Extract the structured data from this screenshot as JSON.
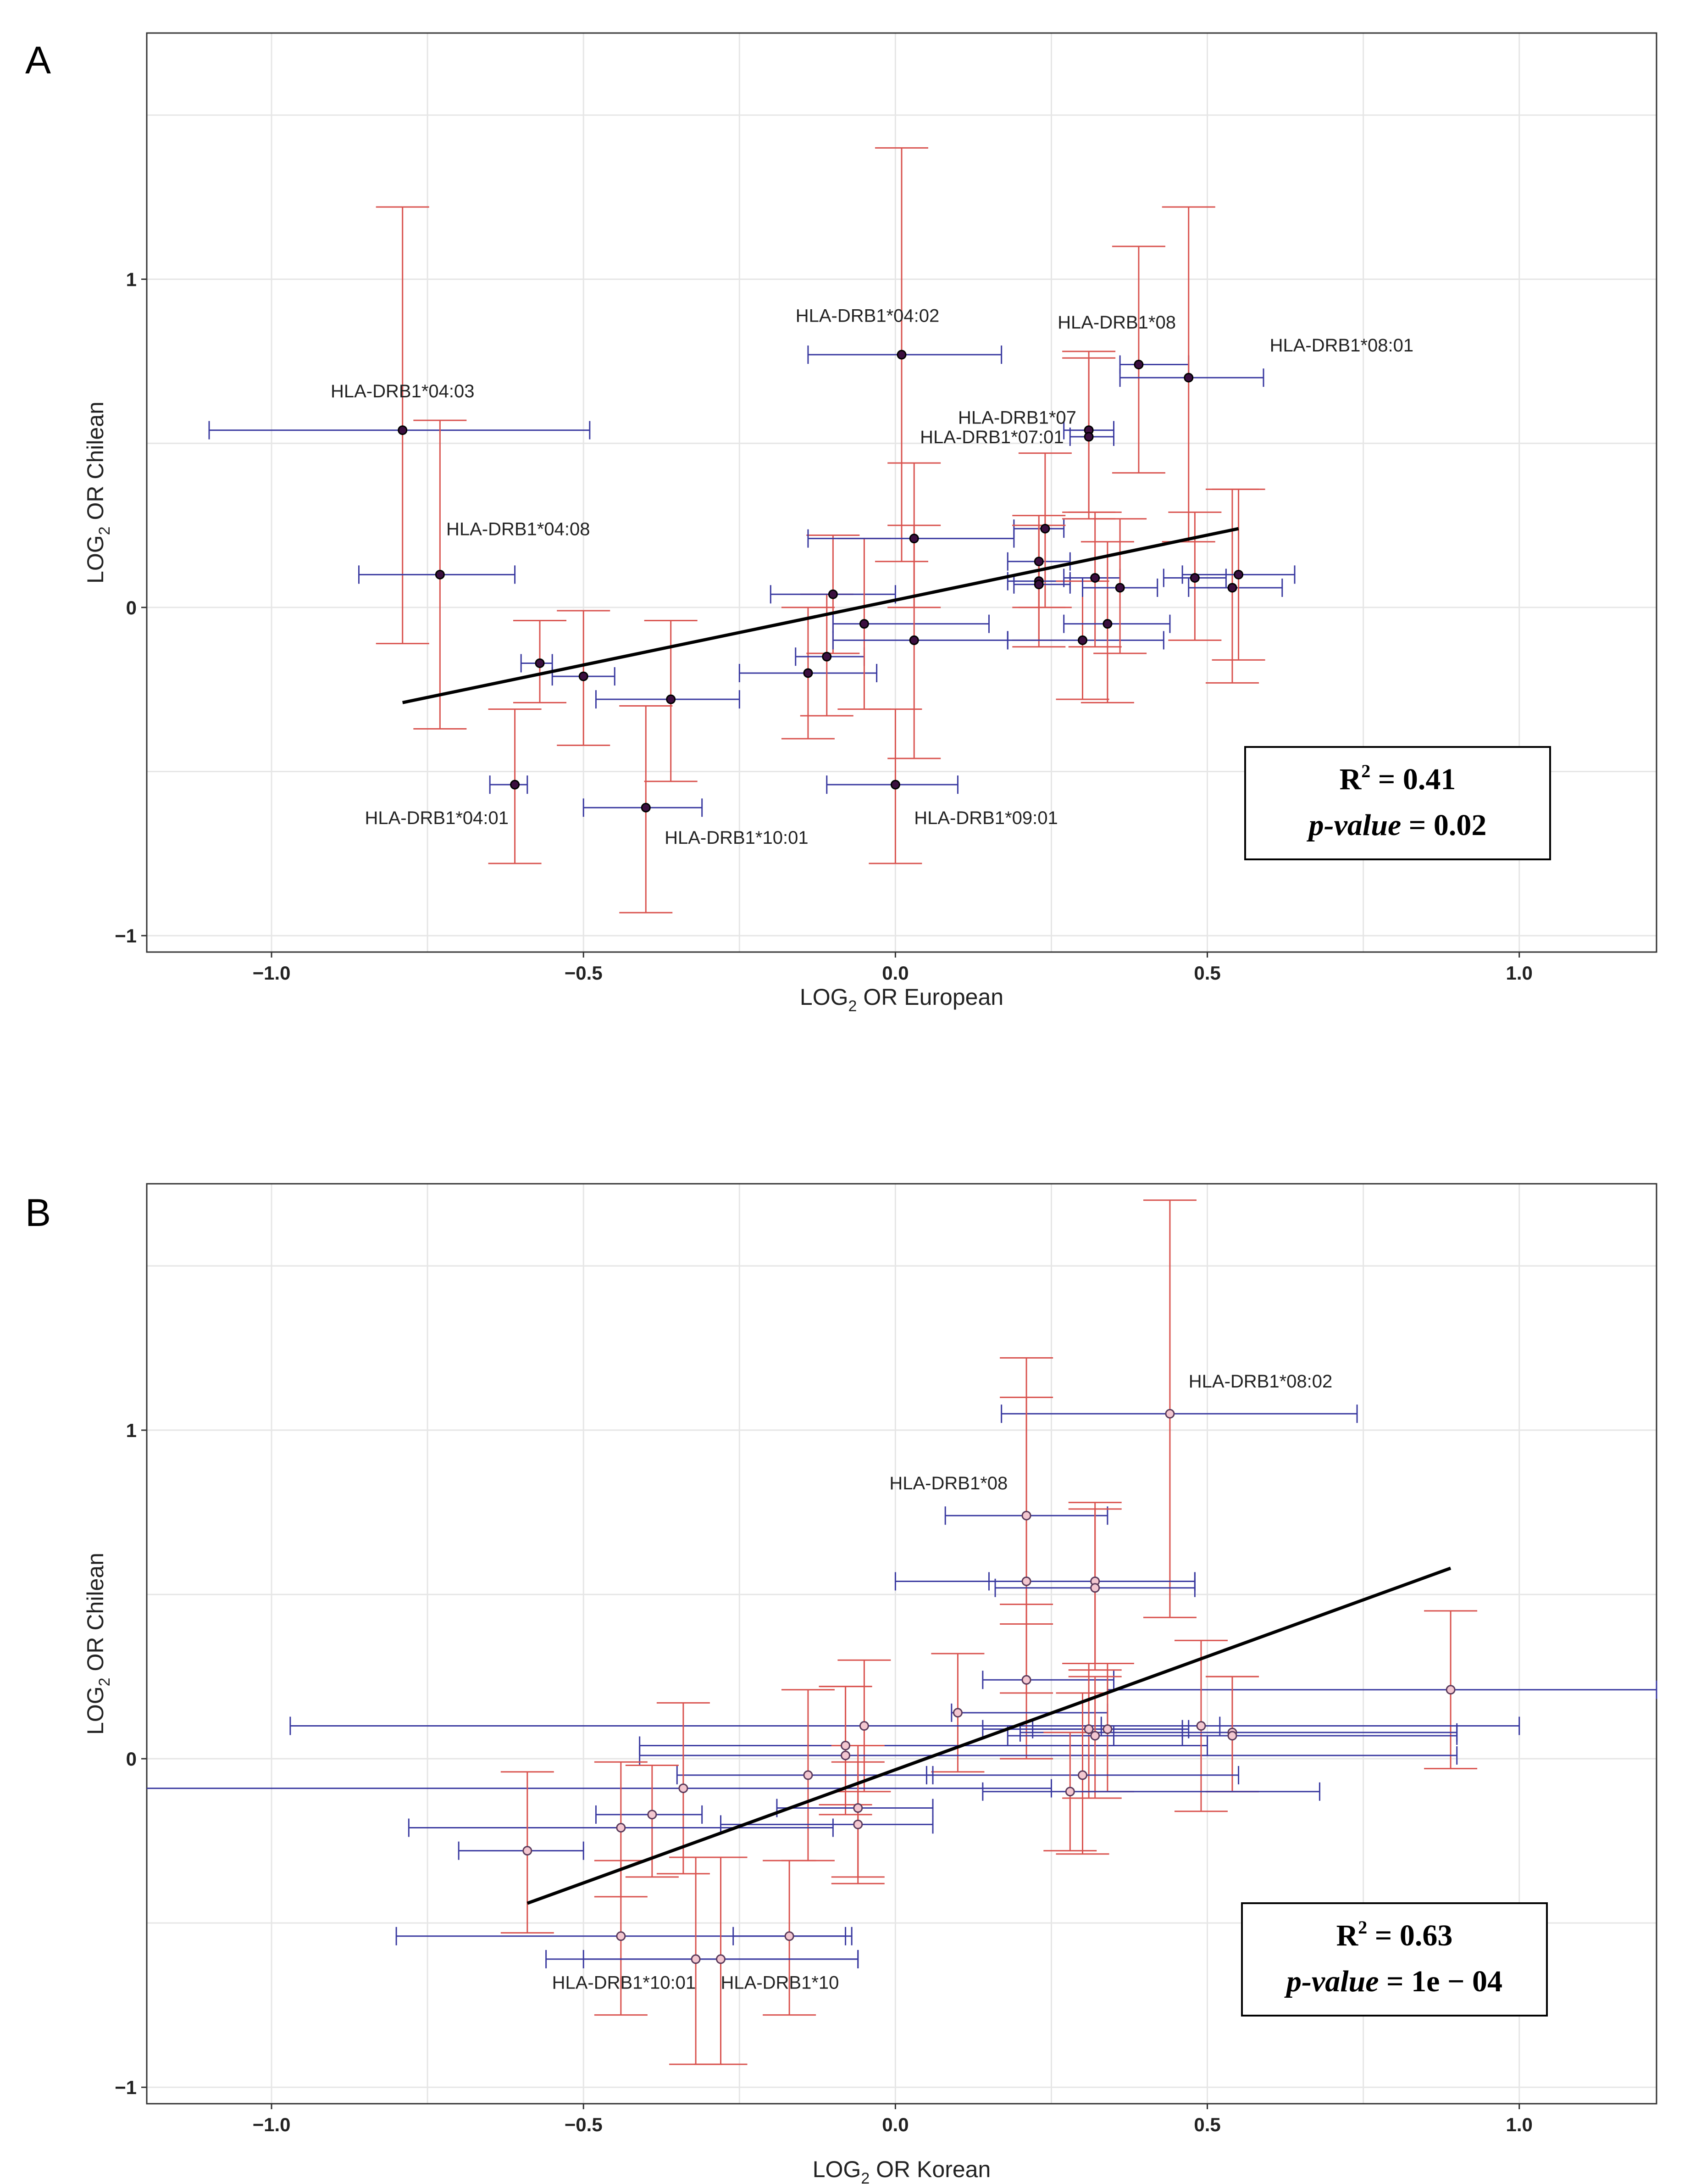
{
  "colors": {
    "y_err": "#d9534f",
    "x_err": "#3a3aa0",
    "grid": "#e6e6e6",
    "frame": "#333333",
    "regression": "#000000",
    "pointA": "#3b0f3f",
    "pointB": "#f3c7d0"
  },
  "chart_data": [
    {
      "panel": "A",
      "type": "scatter",
      "xlabel_main": "LOG",
      "xlabel_sub": "2",
      "xlabel_rest": " OR European",
      "ylabel_main": "LOG",
      "ylabel_sub": "2",
      "ylabel_rest": " OR Chilean",
      "xlim": [
        -1.2,
        1.22
      ],
      "ylim": [
        -1.05,
        1.75
      ],
      "x_ticks": [
        -1.0,
        -0.5,
        0.0,
        0.5,
        1.0
      ],
      "x_tick_labels": [
        "−1.0",
        "−0.5",
        "0.0",
        "0.5",
        "1.0"
      ],
      "y_ticks": [
        -1,
        0,
        1
      ],
      "y_tick_labels": [
        "−1",
        "0",
        "1"
      ],
      "grid": true,
      "regression": {
        "x": [
          -0.79,
          0.55
        ],
        "y": [
          -0.29,
          0.24
        ]
      },
      "stats": {
        "r2_label": "R",
        "r2_sup": "2",
        "r2_value": " = 0.41",
        "p_label": "p-value",
        "p_value": " = 0.02"
      },
      "points": [
        {
          "x": -0.79,
          "y": 0.54,
          "x_lo": -1.1,
          "x_hi": -0.49,
          "y_lo": -0.11,
          "y_hi": 1.22
        },
        {
          "x": -0.73,
          "y": 0.1,
          "x_lo": -0.86,
          "x_hi": -0.61,
          "y_lo": -0.37,
          "y_hi": 0.57
        },
        {
          "x": -0.61,
          "y": -0.54,
          "x_lo": -0.65,
          "x_hi": -0.59,
          "y_lo": -0.78,
          "y_hi": -0.31
        },
        {
          "x": -0.57,
          "y": -0.17,
          "x_lo": -0.6,
          "x_hi": -0.55,
          "y_lo": -0.29,
          "y_hi": -0.04
        },
        {
          "x": -0.5,
          "y": -0.21,
          "x_lo": -0.55,
          "x_hi": -0.45,
          "y_lo": -0.42,
          "y_hi": -0.01
        },
        {
          "x": -0.36,
          "y": -0.28,
          "x_lo": -0.48,
          "x_hi": -0.25,
          "y_lo": -0.53,
          "y_hi": -0.04
        },
        {
          "x": -0.4,
          "y": -0.61,
          "x_lo": -0.5,
          "x_hi": -0.31,
          "y_lo": -0.93,
          "y_hi": -0.3
        },
        {
          "x": -0.14,
          "y": -0.2,
          "x_lo": -0.25,
          "x_hi": -0.03,
          "y_lo": -0.4,
          "y_hi": 0.0
        },
        {
          "x": -0.11,
          "y": -0.15,
          "x_lo": -0.16,
          "x_hi": -0.05,
          "y_lo": -0.33,
          "y_hi": 0.04
        },
        {
          "x": -0.1,
          "y": 0.04,
          "x_lo": -0.2,
          "x_hi": 0.0,
          "y_lo": -0.14,
          "y_hi": 0.22
        },
        {
          "x": -0.05,
          "y": -0.05,
          "x_lo": -0.1,
          "x_hi": 0.15,
          "y_lo": -0.31,
          "y_hi": 0.21
        },
        {
          "x": 0.0,
          "y": -0.54,
          "x_lo": -0.11,
          "x_hi": 0.1,
          "y_lo": -0.78,
          "y_hi": -0.31
        },
        {
          "x": 0.01,
          "y": 0.77,
          "x_lo": -0.14,
          "x_hi": 0.17,
          "y_lo": 0.14,
          "y_hi": 1.4
        },
        {
          "x": 0.03,
          "y": 0.21,
          "x_lo": -0.14,
          "x_hi": 0.19,
          "y_lo": 0.0,
          "y_hi": 0.44
        },
        {
          "x": 0.03,
          "y": -0.1,
          "x_lo": -0.1,
          "x_hi": 0.18,
          "y_lo": -0.46,
          "y_hi": 0.25
        },
        {
          "x": 0.23,
          "y": 0.14,
          "x_lo": 0.18,
          "x_hi": 0.28,
          "y_lo": 0.0,
          "y_hi": 0.28
        },
        {
          "x": 0.24,
          "y": 0.24,
          "x_lo": 0.19,
          "x_hi": 0.27,
          "y_lo": 0.0,
          "y_hi": 0.47
        },
        {
          "x": 0.23,
          "y": 0.08,
          "x_lo": 0.18,
          "x_hi": 0.28,
          "y_lo": -0.1,
          "y_hi": 0.25
        },
        {
          "x": 0.23,
          "y": 0.07,
          "x_lo": 0.19,
          "x_hi": 0.28,
          "y_lo": -0.12,
          "y_hi": 0.25
        },
        {
          "x": 0.3,
          "y": -0.1,
          "x_lo": 0.18,
          "x_hi": 0.43,
          "y_lo": -0.28,
          "y_hi": 0.08
        },
        {
          "x": 0.31,
          "y": 0.54,
          "x_lo": 0.27,
          "x_hi": 0.35,
          "y_lo": 0.29,
          "y_hi": 0.78
        },
        {
          "x": 0.31,
          "y": 0.52,
          "x_lo": 0.28,
          "x_hi": 0.35,
          "y_lo": 0.27,
          "y_hi": 0.76
        },
        {
          "x": 0.32,
          "y": 0.09,
          "x_lo": 0.27,
          "x_hi": 0.36,
          "y_lo": -0.12,
          "y_hi": 0.29
        },
        {
          "x": 0.34,
          "y": -0.05,
          "x_lo": 0.27,
          "x_hi": 0.44,
          "y_lo": -0.29,
          "y_hi": 0.2
        },
        {
          "x": 0.36,
          "y": 0.06,
          "x_lo": 0.3,
          "x_hi": 0.42,
          "y_lo": -0.14,
          "y_hi": 0.27
        },
        {
          "x": 0.39,
          "y": 0.74,
          "x_lo": 0.36,
          "x_hi": 0.47,
          "y_lo": 0.41,
          "y_hi": 1.1
        },
        {
          "x": 0.47,
          "y": 0.7,
          "x_lo": 0.36,
          "x_hi": 0.59,
          "y_lo": 0.2,
          "y_hi": 1.22
        },
        {
          "x": 0.48,
          "y": 0.09,
          "x_lo": 0.43,
          "x_hi": 0.53,
          "y_lo": -0.1,
          "y_hi": 0.29
        },
        {
          "x": 0.54,
          "y": 0.06,
          "x_lo": 0.47,
          "x_hi": 0.62,
          "y_lo": -0.23,
          "y_hi": 0.36
        },
        {
          "x": 0.55,
          "y": 0.1,
          "x_lo": 0.46,
          "x_hi": 0.64,
          "y_lo": -0.16,
          "y_hi": 0.36
        }
      ],
      "annotations": [
        {
          "text": "HLA-DRB1*04:03",
          "x": -0.79,
          "y": 0.64,
          "anchor": "middle"
        },
        {
          "text": "HLA-DRB1*04:08",
          "x": -0.72,
          "y": 0.22,
          "anchor": "start"
        },
        {
          "text": "HLA-DRB1*04:01",
          "x": -0.62,
          "y": -0.66,
          "anchor": "end"
        },
        {
          "text": "HLA-DRB1*10:01",
          "x": -0.37,
          "y": -0.72,
          "anchor": "start"
        },
        {
          "text": "HLA-DRB1*04:02",
          "x": -0.16,
          "y": 0.87,
          "anchor": "start"
        },
        {
          "text": "HLA-DRB1*08",
          "x": 0.26,
          "y": 0.85,
          "anchor": "start"
        },
        {
          "text": "HLA-DRB1*08:01",
          "x": 0.6,
          "y": 0.78,
          "anchor": "start"
        },
        {
          "text": "HLA-DRB1*07",
          "x": 0.29,
          "y": 0.56,
          "anchor": "end"
        },
        {
          "text": "HLA-DRB1*07:01",
          "x": 0.27,
          "y": 0.5,
          "anchor": "end"
        },
        {
          "text": "HLA-DRB1*09:01",
          "x": 0.03,
          "y": -0.66,
          "anchor": "start"
        }
      ]
    },
    {
      "panel": "B",
      "type": "scatter",
      "xlabel_main": "LOG",
      "xlabel_sub": "2",
      "xlabel_rest": " OR Korean",
      "ylabel_main": "LOG",
      "ylabel_sub": "2",
      "ylabel_rest": " OR Chilean",
      "xlim": [
        -1.2,
        1.22
      ],
      "ylim": [
        -1.05,
        1.75
      ],
      "x_ticks": [
        -1.0,
        -0.5,
        0.0,
        0.5,
        1.0
      ],
      "x_tick_labels": [
        "−1.0",
        "−0.5",
        "0.0",
        "0.5",
        "1.0"
      ],
      "y_ticks": [
        -1,
        0,
        1
      ],
      "y_tick_labels": [
        "−1",
        "0",
        "1"
      ],
      "grid": true,
      "regression": {
        "x": [
          -0.59,
          0.89
        ],
        "y": [
          -0.44,
          0.58
        ]
      },
      "stats": {
        "r2_label": "R",
        "r2_sup": "2",
        "r2_value": " = 0.63",
        "p_label": "p-value",
        "p_value": " = 1e − 04"
      },
      "points": [
        {
          "x": 0.44,
          "y": 1.05,
          "x_lo": 0.17,
          "x_hi": 0.74,
          "y_lo": 0.43,
          "y_hi": 1.7
        },
        {
          "x": 0.21,
          "y": 0.74,
          "x_lo": 0.08,
          "x_hi": 0.34,
          "y_lo": 0.41,
          "y_hi": 1.1
        },
        {
          "x": 0.21,
          "y": 0.54,
          "x_lo": 0.0,
          "x_hi": 0.48,
          "y_lo": 0.2,
          "y_hi": 1.22
        },
        {
          "x": 0.32,
          "y": 0.54,
          "x_lo": 0.15,
          "x_hi": 0.48,
          "y_lo": 0.29,
          "y_hi": 0.78
        },
        {
          "x": 0.32,
          "y": 0.52,
          "x_lo": 0.16,
          "x_hi": 0.48,
          "y_lo": 0.27,
          "y_hi": 0.76
        },
        {
          "x": 0.89,
          "y": 0.21,
          "x_lo": 0.34,
          "x_hi": 1.22,
          "y_lo": -0.03,
          "y_hi": 0.45
        },
        {
          "x": 0.21,
          "y": 0.24,
          "x_lo": 0.14,
          "x_hi": 0.35,
          "y_lo": 0.0,
          "y_hi": 0.47
        },
        {
          "x": 0.1,
          "y": 0.14,
          "x_lo": 0.09,
          "x_hi": 0.34,
          "y_lo": -0.04,
          "y_hi": 0.32
        },
        {
          "x": -0.05,
          "y": 0.1,
          "x_lo": -0.97,
          "x_hi": 1.0,
          "y_lo": -0.1,
          "y_hi": 0.3
        },
        {
          "x": -0.08,
          "y": 0.04,
          "x_lo": -0.41,
          "x_hi": 0.5,
          "y_lo": -0.14,
          "y_hi": 0.22
        },
        {
          "x": -0.08,
          "y": 0.01,
          "x_lo": -0.41,
          "x_hi": 0.9,
          "y_lo": -0.17,
          "y_hi": 0.22
        },
        {
          "x": 0.31,
          "y": 0.09,
          "x_lo": 0.14,
          "x_hi": 0.47,
          "y_lo": -0.12,
          "y_hi": 0.29
        },
        {
          "x": 0.34,
          "y": 0.09,
          "x_lo": 0.22,
          "x_hi": 0.46,
          "y_lo": -0.1,
          "y_hi": 0.29
        },
        {
          "x": 0.49,
          "y": 0.1,
          "x_lo": 0.33,
          "x_hi": 0.52,
          "y_lo": -0.16,
          "y_hi": 0.36
        },
        {
          "x": 0.32,
          "y": 0.07,
          "x_lo": 0.18,
          "x_hi": 0.46,
          "y_lo": -0.12,
          "y_hi": 0.25
        },
        {
          "x": 0.54,
          "y": 0.08,
          "x_lo": 0.2,
          "x_hi": 0.9,
          "y_lo": -0.1,
          "y_hi": 0.25
        },
        {
          "x": 0.54,
          "y": 0.07,
          "x_lo": 0.35,
          "x_hi": 0.9,
          "y_lo": -0.1,
          "y_hi": 0.25
        },
        {
          "x": -0.14,
          "y": -0.05,
          "x_lo": -0.35,
          "x_hi": 0.06,
          "y_lo": -0.31,
          "y_hi": 0.21
        },
        {
          "x": 0.3,
          "y": -0.05,
          "x_lo": 0.05,
          "x_hi": 0.55,
          "y_lo": -0.29,
          "y_hi": 0.2
        },
        {
          "x": 0.28,
          "y": -0.1,
          "x_lo": 0.14,
          "x_hi": 0.68,
          "y_lo": -0.28,
          "y_hi": 0.08
        },
        {
          "x": -0.34,
          "y": -0.09,
          "x_lo": -1.22,
          "x_hi": 0.25,
          "y_lo": -0.35,
          "y_hi": 0.17
        },
        {
          "x": -0.06,
          "y": -0.15,
          "x_lo": -0.19,
          "x_hi": 0.06,
          "y_lo": -0.36,
          "y_hi": 0.04
        },
        {
          "x": -0.06,
          "y": -0.2,
          "x_lo": -0.28,
          "x_hi": 0.06,
          "y_lo": -0.38,
          "y_hi": -0.01
        },
        {
          "x": -0.39,
          "y": -0.17,
          "x_lo": -0.48,
          "x_hi": -0.31,
          "y_lo": -0.36,
          "y_hi": -0.02
        },
        {
          "x": -0.44,
          "y": -0.21,
          "x_lo": -0.78,
          "x_hi": -0.1,
          "y_lo": -0.42,
          "y_hi": -0.01
        },
        {
          "x": -0.59,
          "y": -0.28,
          "x_lo": -0.7,
          "x_hi": -0.5,
          "y_lo": -0.53,
          "y_hi": -0.04
        },
        {
          "x": -0.44,
          "y": -0.54,
          "x_lo": -0.8,
          "x_hi": -0.08,
          "y_lo": -0.78,
          "y_hi": -0.31
        },
        {
          "x": -0.17,
          "y": -0.54,
          "x_lo": -0.26,
          "x_hi": -0.07,
          "y_lo": -0.78,
          "y_hi": -0.31
        },
        {
          "x": -0.32,
          "y": -0.61,
          "x_lo": -0.56,
          "x_hi": -0.06,
          "y_lo": -0.93,
          "y_hi": -0.3
        },
        {
          "x": -0.28,
          "y": -0.61,
          "x_lo": -0.5,
          "x_hi": -0.06,
          "y_lo": -0.93,
          "y_hi": -0.3
        }
      ],
      "annotations": [
        {
          "text": "HLA-DRB1*08:02",
          "x": 0.47,
          "y": 1.13,
          "anchor": "start"
        },
        {
          "text": "HLA-DRB1*08",
          "x": 0.18,
          "y": 0.82,
          "anchor": "end"
        },
        {
          "text": "HLA-DRB1*10:01",
          "x": -0.32,
          "y": -0.7,
          "anchor": "end"
        },
        {
          "text": "HLA-DRB1*10",
          "x": -0.28,
          "y": -0.7,
          "anchor": "start"
        }
      ]
    }
  ]
}
